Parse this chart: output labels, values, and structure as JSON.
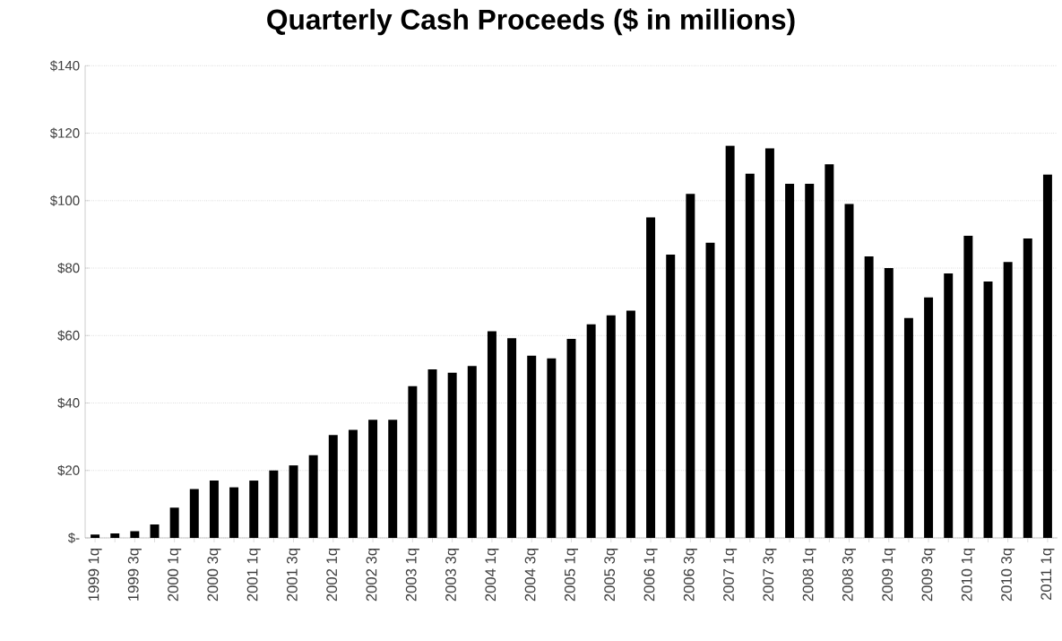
{
  "chart_data": {
    "type": "bar",
    "title": "Quarterly Cash Proceeds ($ in millions)",
    "categories": [
      "1999 1q",
      null,
      "1999 3q",
      null,
      "2000 1q",
      null,
      "2000 3q",
      null,
      "2001 1q",
      null,
      "2001 3q",
      null,
      "2002 1q",
      null,
      "2002 3q",
      null,
      "2003 1q",
      null,
      "2003 3q",
      null,
      "2004 1q",
      null,
      "2004 3q",
      null,
      "2005 1q",
      null,
      "2005 3q",
      null,
      "2006 1q",
      null,
      "2006 3q",
      null,
      "2007 1q",
      null,
      "2007 3q",
      null,
      "2008 1q",
      null,
      "2008 3q",
      null,
      "2009 1q",
      null,
      "2009 3q",
      null,
      "2010 1q",
      null,
      "2010 3q",
      null,
      "2011 1q"
    ],
    "values": [
      1,
      1.3,
      2,
      4,
      9,
      14.5,
      17,
      15,
      17,
      20,
      21.5,
      24.5,
      30.5,
      32,
      35,
      35,
      45,
      50,
      49,
      51,
      61.3,
      59.2,
      54,
      53.2,
      59,
      63.3,
      66,
      67.4,
      95,
      84,
      102,
      87.5,
      116.3,
      108,
      115.5,
      105,
      105,
      110.8,
      99,
      83.5,
      80,
      65.2,
      71.3,
      78.4,
      89.6,
      76,
      81.8,
      88.8,
      107.7
    ],
    "color": "#000000",
    "ylim": [
      0,
      140
    ],
    "yticks": [
      {
        "value": 0,
        "label": "$-"
      },
      {
        "value": 20,
        "label": "$20"
      },
      {
        "value": 40,
        "label": "$40"
      },
      {
        "value": 60,
        "label": "$60"
      },
      {
        "value": 80,
        "label": "$80"
      },
      {
        "value": 100,
        "label": "$100"
      },
      {
        "value": 120,
        "label": "$120"
      },
      {
        "value": 140,
        "label": "$140"
      }
    ],
    "grid": "y"
  }
}
